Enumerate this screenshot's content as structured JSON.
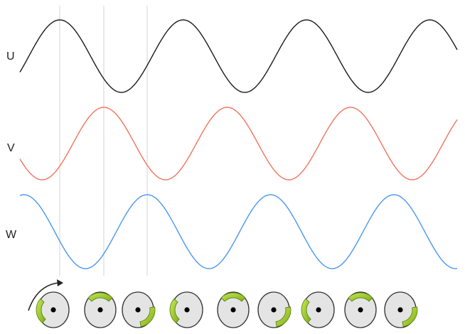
{
  "labels": {
    "u": "U",
    "v": "V",
    "w": "W"
  },
  "colors": {
    "u": "#1a1a1a",
    "v": "#f2735d",
    "w": "#4a97ef",
    "guide": "#d6d6d6",
    "rotor_fill": "#e4e4e4",
    "rotor_stroke": "#333333",
    "magnet": "#9ccc1a",
    "magnet_dark": "#557a0c"
  },
  "arrow_icon": "curved-rotation-arrow",
  "rotor_icon": "rotor-disc"
}
